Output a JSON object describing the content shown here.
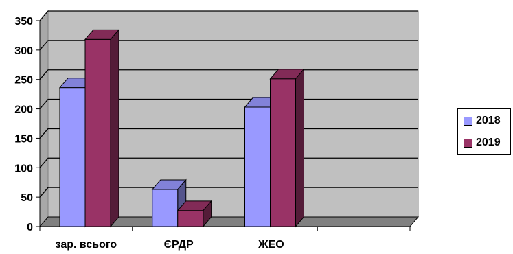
{
  "chart_data": {
    "type": "bar",
    "categories": [
      "зар. всього",
      "ЄРДР",
      "ЖЕО",
      ""
    ],
    "series": [
      {
        "name": "2018",
        "values": [
          236,
          63,
          203,
          null
        ],
        "color": "#9999ff"
      },
      {
        "name": "2019",
        "values": [
          318,
          27,
          251,
          null
        ],
        "color": "#993366"
      }
    ],
    "ylim": [
      0,
      350
    ],
    "yticks": [
      "0",
      "50",
      "100",
      "150",
      "200",
      "250",
      "300",
      "350"
    ],
    "grid": true,
    "legend_position": "right",
    "style": "3d-clustered-column",
    "plot_background": "#c0c0c0"
  }
}
